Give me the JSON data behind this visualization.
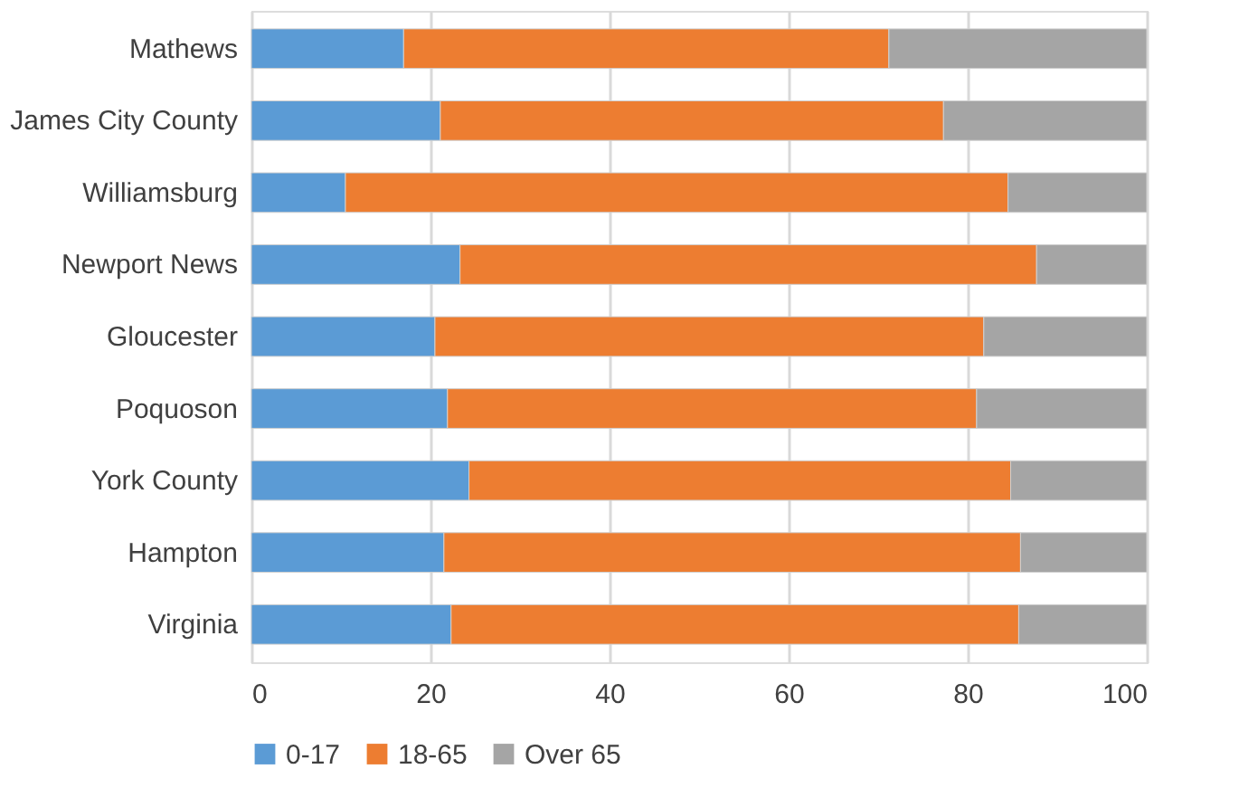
{
  "chart_data": {
    "type": "bar",
    "orientation": "horizontal",
    "stacked": true,
    "categories": [
      "Mathews",
      "James City County",
      "Williamsburg",
      "Newport News",
      "Gloucester",
      "Poquoson",
      "York County",
      "Hampton",
      "Virginia"
    ],
    "series": [
      {
        "name": "0-17",
        "color": "#5b9bd5",
        "values": [
          17.0,
          21.1,
          10.5,
          23.3,
          20.5,
          21.9,
          24.3,
          21.5,
          22.3
        ]
      },
      {
        "name": "18-65",
        "color": "#ed7d31",
        "values": [
          54.2,
          56.2,
          74.0,
          64.4,
          61.3,
          59.1,
          60.5,
          64.4,
          63.4
        ]
      },
      {
        "name": "Over 65",
        "color": "#a5a5a5",
        "values": [
          28.8,
          22.7,
          15.5,
          12.3,
          18.2,
          19.0,
          15.2,
          14.1,
          14.3
        ]
      }
    ],
    "xlim": [
      0,
      100
    ],
    "xticks": [
      0,
      20,
      40,
      60,
      80,
      100
    ],
    "grid": "x",
    "legend": "bottom"
  }
}
